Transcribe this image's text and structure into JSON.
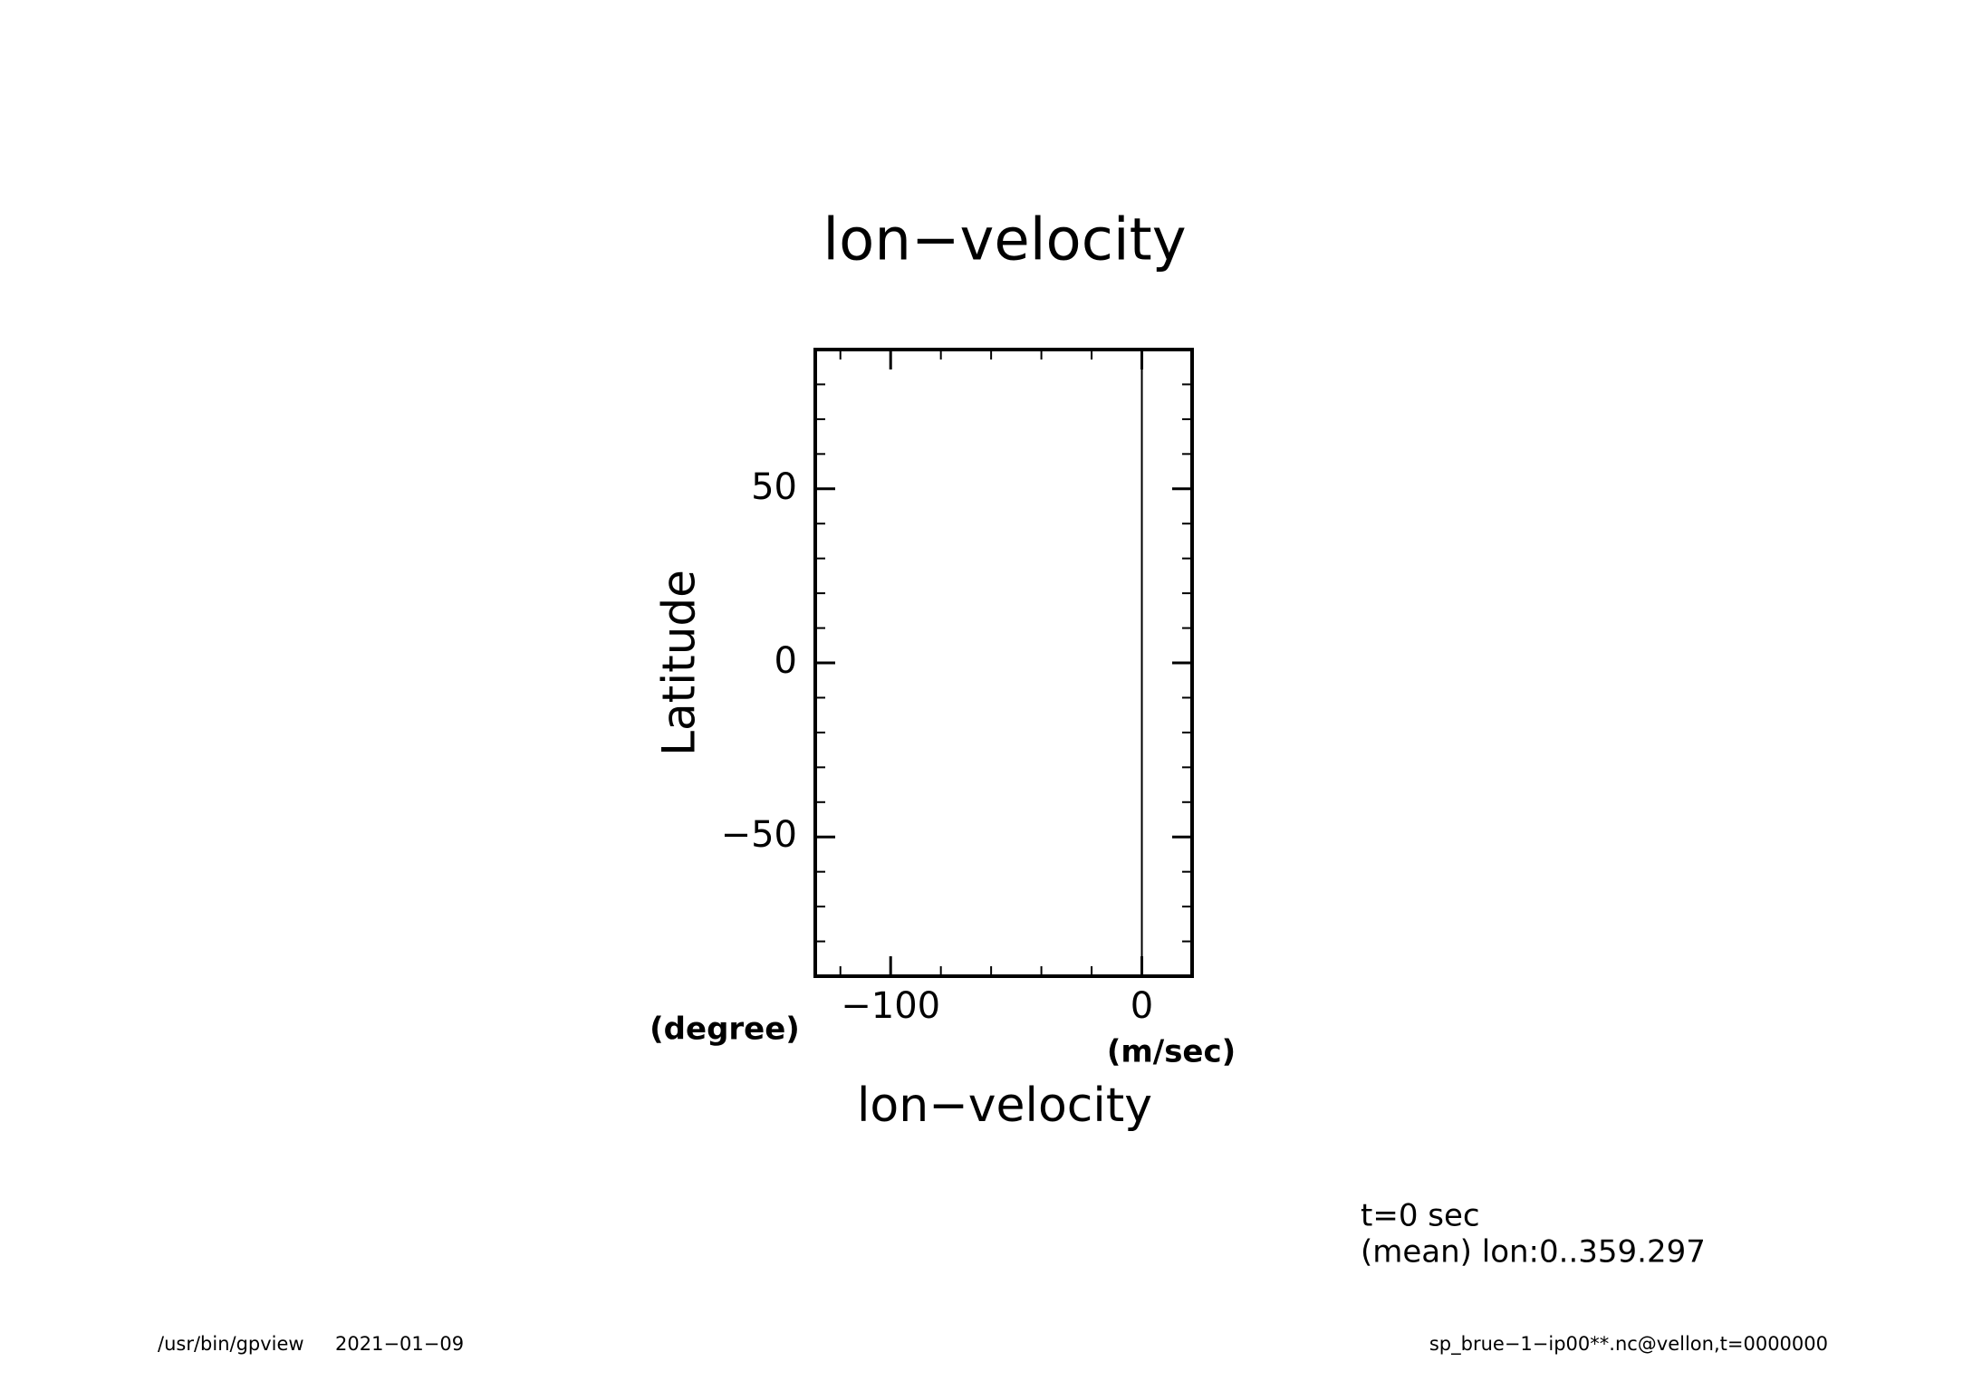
{
  "chart_data": {
    "type": "line",
    "title": "lon−velocity",
    "xlabel": "lon−velocity",
    "ylabel": "Latitude",
    "x_unit": "(m/sec)",
    "y_unit": "(degree)",
    "y": [
      -90,
      -60,
      -30,
      0,
      30,
      60,
      90
    ],
    "values": [
      0,
      0,
      0,
      0,
      0,
      0,
      0
    ],
    "color": "#000000",
    "xlim": [
      -130,
      20
    ],
    "ylim": [
      -90,
      90
    ],
    "xticks": [
      {
        "value": -100,
        "label": "−100"
      },
      0
    ],
    "yticks": [
      {
        "value": -50,
        "label": "−50"
      },
      0,
      50
    ],
    "xminor": [
      -120,
      -100,
      -80,
      -60,
      -40,
      -20,
      0
    ],
    "yminor": [
      -80,
      -70,
      -60,
      -50,
      -40,
      -30,
      -20,
      -10,
      0,
      10,
      20,
      30,
      40,
      50,
      60,
      70,
      80
    ],
    "annotations": [
      "t=0 sec",
      "(mean) lon:0..359.297"
    ],
    "footer_left": [
      "/usr/bin/gpview",
      "2021−01−09"
    ],
    "footer_right": "sp_brue−1−ip00**.nc@vellon,t=0000000"
  }
}
